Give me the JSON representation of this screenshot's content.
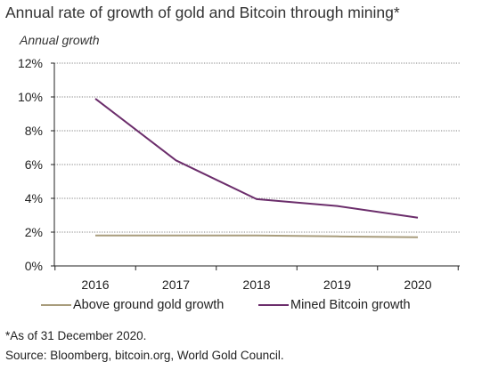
{
  "chart_data": {
    "type": "line",
    "title": "Annual rate of growth of gold and Bitcoin through mining*",
    "ylabel": "Annual growth",
    "xlabel": "",
    "x": [
      "2016",
      "2017",
      "2018",
      "2019",
      "2020"
    ],
    "y_ticks": [
      "0%",
      "2%",
      "4%",
      "6%",
      "8%",
      "10%",
      "12%"
    ],
    "ylim": [
      0,
      12
    ],
    "grid": "horizontal dotted",
    "legend_position": "bottom",
    "series": [
      {
        "name": "Above ground gold growth",
        "color": "#a89c7c",
        "values": [
          1.8,
          1.8,
          1.8,
          1.75,
          1.7
        ]
      },
      {
        "name": "Mined Bitcoin growth",
        "color": "#6b2d6b",
        "values": [
          9.9,
          6.25,
          3.95,
          3.55,
          2.85
        ]
      }
    ]
  },
  "footnote": "*As of 31 December 2020.",
  "source": "Source: Bloomberg, bitcoin.org, World Gold Council."
}
